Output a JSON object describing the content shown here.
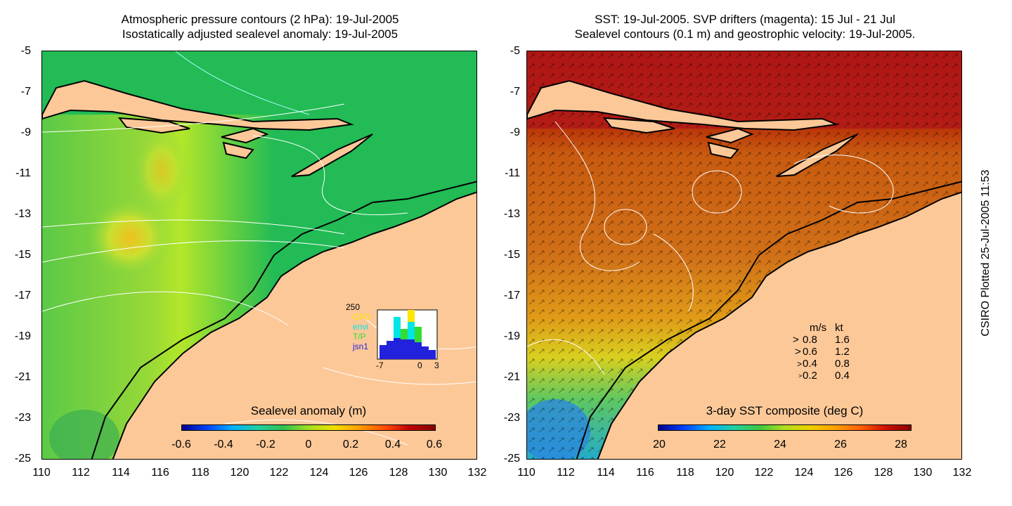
{
  "left_panel": {
    "title_line1": "Atmospheric pressure contours (2 hPa): 19-Jul-2005",
    "title_line2": "Isostatically adjusted sealevel anomaly: 19-Jul-2005",
    "colorbar_label": "Sealevel anomaly (m)",
    "colorbar_ticks": [
      "-0.6",
      "-0.4",
      "-0.2",
      "0",
      "0.2",
      "0.4",
      "0.6"
    ],
    "inset": {
      "ymax_label": "250",
      "series": [
        "GFO",
        "envi",
        "T/P",
        "jsn1"
      ],
      "series_colors": [
        "#ffe600",
        "#00e5e5",
        "#33dd33",
        "#2222dd"
      ],
      "x_ticks": [
        "-7",
        "0",
        "3"
      ]
    }
  },
  "right_panel": {
    "title_line1": "SST: 19-Jul-2005. SVP drifters (magenta): 15 Jul - 21 Jul",
    "title_line2": "Sealevel contours (0.1 m) and geostrophic velocity: 19-Jul-2005.",
    "colorbar_label": "3-day SST composite (deg C)",
    "colorbar_ticks": [
      "20",
      "22",
      "24",
      "26",
      "28"
    ],
    "velocity_legend": {
      "header_ms": "m/s",
      "header_kt": "kt",
      "rows": [
        {
          "ms": "0.8",
          "kt": "1.6"
        },
        {
          "ms": "0.6",
          "kt": "1.2"
        },
        {
          "ms": "0.4",
          "kt": "0.8"
        },
        {
          "ms": "0.2",
          "kt": "0.4"
        }
      ]
    }
  },
  "axes": {
    "y_ticks": [
      "-5",
      "-7",
      "-9",
      "-11",
      "-13",
      "-15",
      "-17",
      "-19",
      "-21",
      "-23",
      "-25"
    ],
    "x_ticks": [
      "110",
      "112",
      "114",
      "116",
      "118",
      "120",
      "122",
      "124",
      "126",
      "128",
      "130",
      "132"
    ],
    "lon_range": [
      110,
      132
    ],
    "lat_range": [
      -25,
      -5
    ]
  },
  "credit": "CSIRO Plotted 25-Jul-2005 11:53",
  "colors": {
    "land": "#fdc898",
    "sla_base": "#22bb55",
    "sst_base": "#c85a10"
  }
}
